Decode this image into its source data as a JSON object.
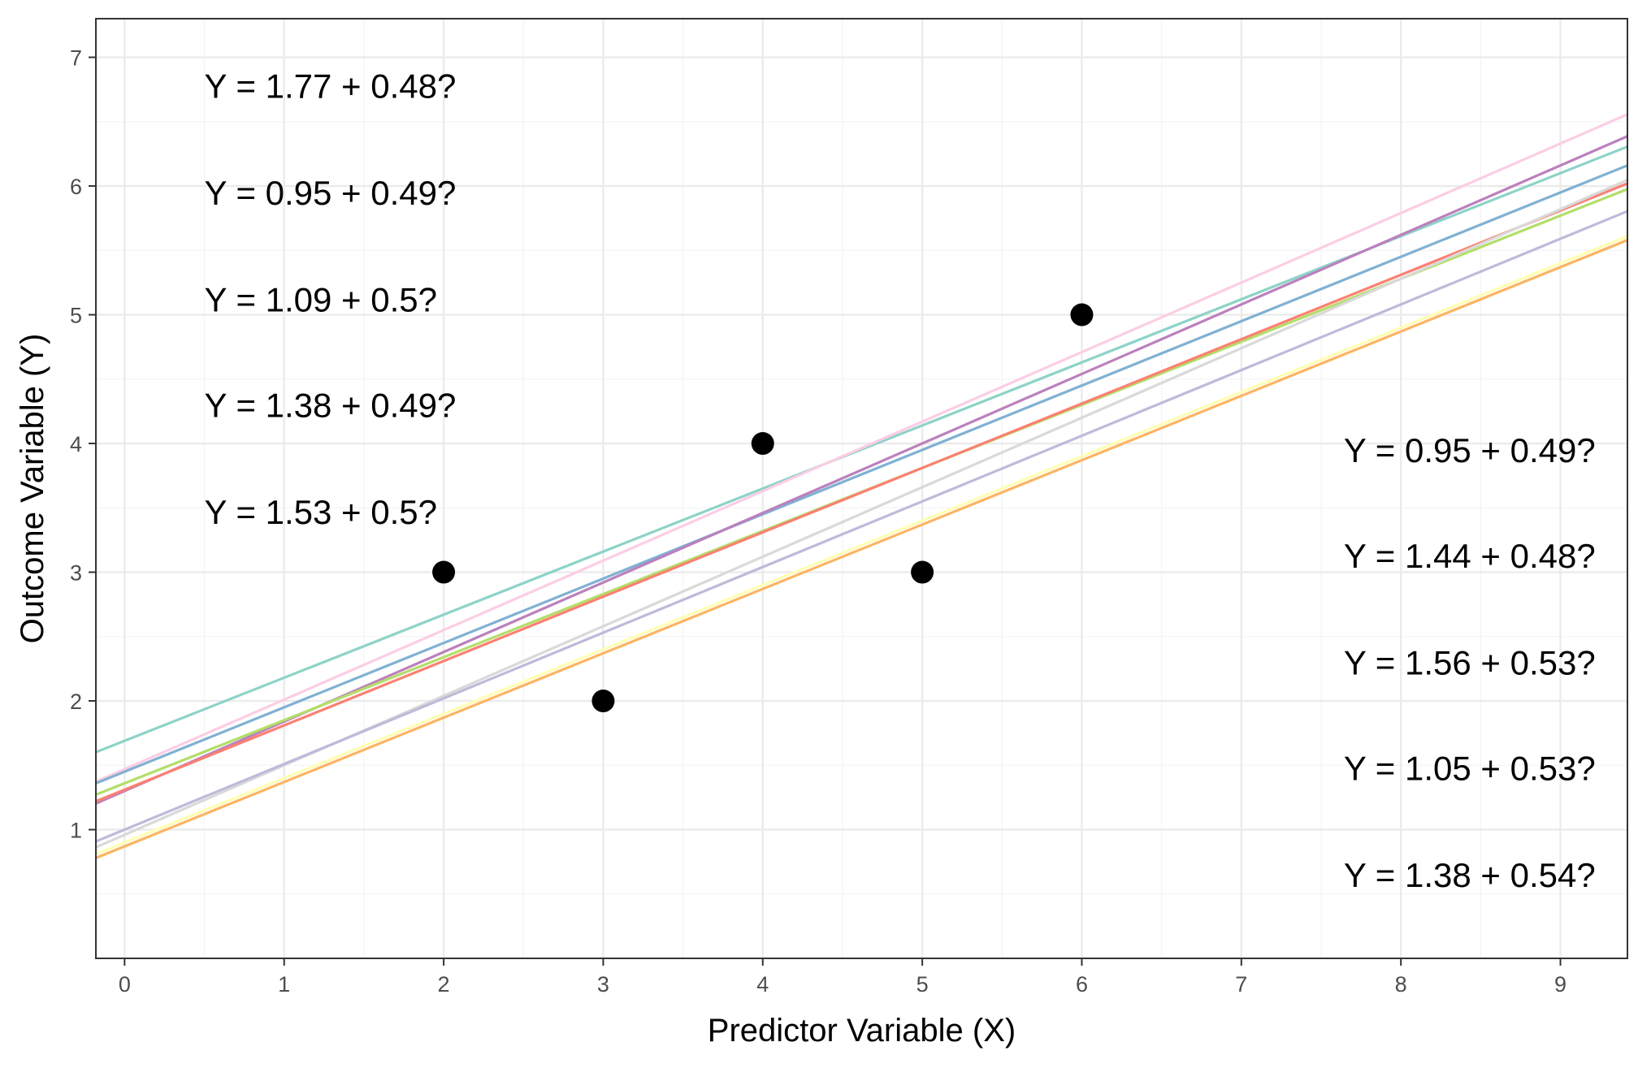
{
  "chart_data": {
    "type": "scatter",
    "title": "",
    "xlabel": "Predictor Variable (X)",
    "ylabel": "Outcome Variable (Y)",
    "xlim": [
      -0.18,
      9.42
    ],
    "ylim": [
      0,
      7.3
    ],
    "grid": true,
    "x_ticks": [
      0,
      1,
      2,
      3,
      4,
      5,
      6,
      7,
      8,
      9
    ],
    "y_ticks": [
      1,
      2,
      3,
      4,
      5,
      6,
      7
    ],
    "points": [
      {
        "x": 2,
        "y": 3
      },
      {
        "x": 3,
        "y": 2
      },
      {
        "x": 4,
        "y": 4
      },
      {
        "x": 5,
        "y": 3
      },
      {
        "x": 6,
        "y": 5
      }
    ],
    "point_color": "#000000",
    "lines": [
      {
        "intercept": 1.69,
        "slope": 0.49,
        "color": "#8DD3C7"
      },
      {
        "intercept": 1.47,
        "slope": 0.54,
        "color": "#FCCDE5"
      },
      {
        "intercept": 1.45,
        "slope": 0.5,
        "color": "#80B1D3"
      },
      {
        "intercept": 1.3,
        "slope": 0.54,
        "color": "#BC80BD"
      },
      {
        "intercept": 1.36,
        "slope": 0.49,
        "color": "#B3DE69"
      },
      {
        "intercept": 1.31,
        "slope": 0.5,
        "color": "#FB8072"
      },
      {
        "intercept": 0.96,
        "slope": 0.54,
        "color": "#D9D9D9"
      },
      {
        "intercept": 1.0,
        "slope": 0.51,
        "color": "#BEBADA"
      },
      {
        "intercept": 0.9,
        "slope": 0.5,
        "color": "#FFFFB3"
      },
      {
        "intercept": 0.87,
        "slope": 0.5,
        "color": "#FDB462"
      }
    ],
    "annotations_left": [
      {
        "text": "Y = 1.77 + 0.48?",
        "x": 0.5,
        "y": 6.78
      },
      {
        "text": "Y = 0.95 + 0.49?",
        "x": 0.5,
        "y": 5.95
      },
      {
        "text": "Y = 1.09 + 0.5?",
        "x": 0.5,
        "y": 5.12
      },
      {
        "text": "Y = 1.38 + 0.49?",
        "x": 0.5,
        "y": 4.3
      },
      {
        "text": "Y = 1.53 + 0.5?",
        "x": 0.5,
        "y": 3.47
      }
    ],
    "annotations_right": [
      {
        "text": "Y = 0.95 + 0.49?",
        "x": 9.22,
        "y": 3.95
      },
      {
        "text": "Y = 1.44 + 0.48?",
        "x": 9.22,
        "y": 3.13
      },
      {
        "text": "Y = 1.56 + 0.53?",
        "x": 9.22,
        "y": 2.3
      },
      {
        "text": "Y = 1.05 + 0.53?",
        "x": 9.22,
        "y": 1.48
      },
      {
        "text": "Y = 1.38 + 0.54?",
        "x": 9.22,
        "y": 0.65
      }
    ],
    "colors": {
      "grid_major": "#EBEBEB",
      "grid_minor": "#F4F4F4",
      "panel_border": "#333333",
      "tick_text": "#4D4D4D"
    }
  }
}
